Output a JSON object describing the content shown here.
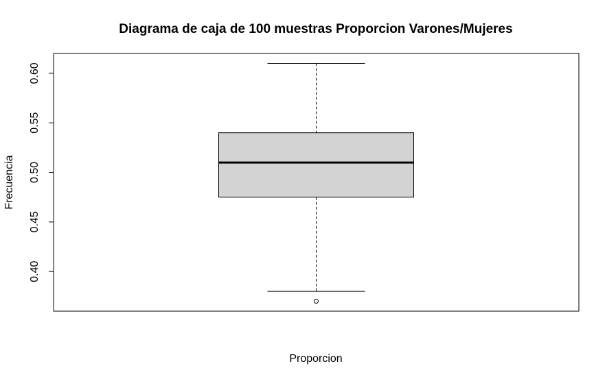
{
  "chart_data": {
    "type": "boxplot",
    "title": "Diagrama de caja de 100 muestras Proporcion Varones/Mujeres",
    "xlabel": "Proporcion",
    "ylabel": "Frecuencia",
    "ylim": [
      0.36,
      0.62
    ],
    "yticks": [
      0.4,
      0.45,
      0.5,
      0.55,
      0.6
    ],
    "ytick_labels": [
      "0.40",
      "0.45",
      "0.50",
      "0.55",
      "0.60"
    ],
    "box": {
      "whisker_low": 0.38,
      "q1": 0.475,
      "median": 0.51,
      "q3": 0.54,
      "whisker_high": 0.61,
      "outliers": [
        0.37
      ]
    },
    "grid": false,
    "box_fill_color": "#d3d3d3",
    "line_color": "#000000"
  }
}
